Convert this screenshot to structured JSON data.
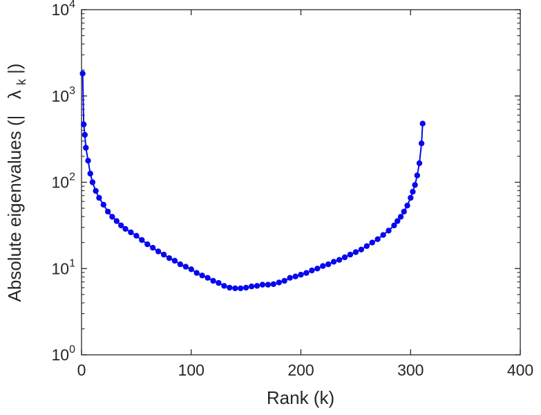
{
  "figure": {
    "background": "#ffffff",
    "axes_color": "#262626",
    "ylabel": {
      "pre": "Absolute eigenvalues (|",
      "symbol": "λ",
      "subscript": "k",
      "post": "|)"
    }
  },
  "chart_data": {
    "type": "line",
    "title": "",
    "xlabel": "Rank (k)",
    "ylabel": "Absolute eigenvalues (|lambda_k|)",
    "yscale": "log",
    "grid": false,
    "legend": null,
    "marker": "circle",
    "line_color": "#0808ee",
    "xlim": [
      0,
      400
    ],
    "ylim_log10": [
      0,
      4
    ],
    "x_ticks": [
      0,
      100,
      200,
      300,
      400
    ],
    "y_tick_exponents": [
      0,
      1,
      2,
      3,
      4
    ],
    "series": [
      {
        "name": "absolute-eigenvalues",
        "x": [
          1,
          2,
          3,
          4,
          6,
          8,
          10,
          13,
          16,
          20,
          24,
          28,
          32,
          36,
          40,
          45,
          50,
          55,
          60,
          65,
          70,
          75,
          80,
          85,
          90,
          95,
          100,
          105,
          110,
          115,
          120,
          125,
          130,
          135,
          140,
          145,
          150,
          155,
          160,
          165,
          170,
          175,
          180,
          185,
          190,
          195,
          200,
          205,
          210,
          215,
          220,
          225,
          230,
          235,
          240,
          245,
          250,
          255,
          260,
          265,
          270,
          275,
          280,
          285,
          288,
          291,
          294,
          297,
          300,
          302,
          304,
          306,
          308,
          310,
          311
        ],
        "y": [
          1820,
          468,
          355,
          251,
          178,
          126,
          100,
          79.4,
          66,
          55,
          45.7,
          39.8,
          35.5,
          31.6,
          28.8,
          26.3,
          24,
          21.4,
          19.1,
          17.4,
          15.8,
          14.5,
          13.2,
          12.3,
          11.2,
          10.5,
          9.8,
          8.9,
          8.3,
          7.8,
          7.2,
          6.8,
          6.3,
          6.0,
          5.9,
          5.9,
          6.0,
          6.2,
          6.3,
          6.5,
          6.5,
          6.6,
          6.9,
          7.2,
          7.8,
          8.1,
          8.5,
          8.9,
          9.5,
          10.0,
          10.7,
          11.2,
          12.0,
          12.6,
          13.5,
          14.5,
          15.5,
          16.6,
          18.2,
          20.0,
          21.9,
          24.5,
          27.5,
          31.6,
          35.5,
          39.8,
          45.7,
          53.7,
          66,
          77.6,
          93,
          120,
          166,
          282,
          478
        ]
      }
    ]
  }
}
